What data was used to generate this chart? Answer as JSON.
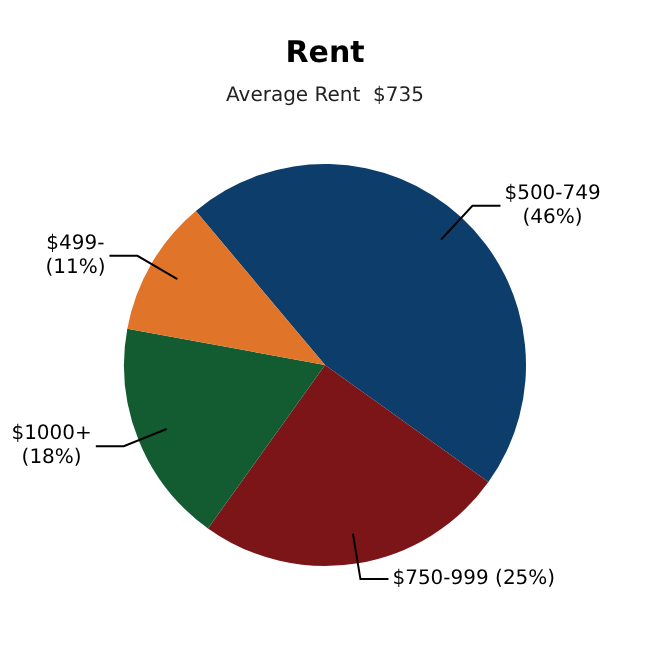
{
  "chart_data": {
    "type": "pie",
    "title": "Rent",
    "subtitle": "Average Rent  $735",
    "categories": [
      "$500-749",
      "$750-999",
      "$1000+",
      "$499-"
    ],
    "values": [
      46,
      25,
      18,
      11
    ],
    "colors": [
      "#0d3d6b",
      "#7c1518",
      "#135c31",
      "#e07428"
    ],
    "value_labels": [
      "(46%)",
      "(25%)",
      "(18%)",
      "(11%)"
    ],
    "legend": false
  }
}
